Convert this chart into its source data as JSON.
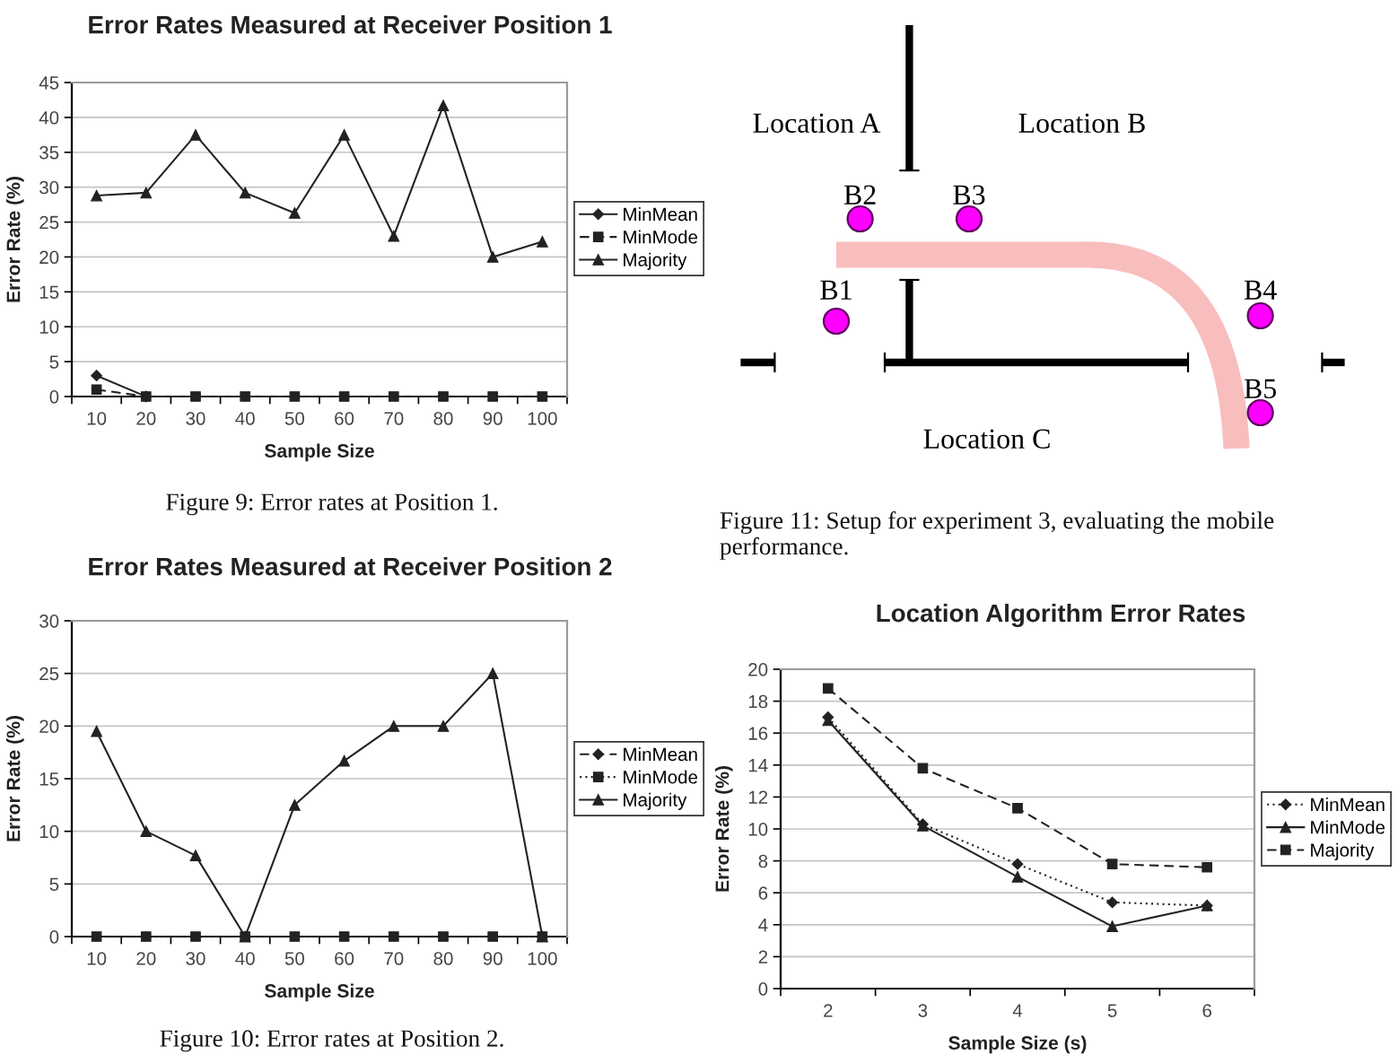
{
  "chart_data": [
    {
      "type": "line",
      "title": "Error Rates Measured at Receiver Position 1",
      "xlabel": "Sample Size",
      "ylabel": "Error Rate (%)",
      "categories": [
        "10",
        "20",
        "30",
        "40",
        "50",
        "60",
        "70",
        "80",
        "90",
        "100"
      ],
      "series": [
        {
          "name": "MinMean",
          "color": "#222222",
          "marker": "diamond",
          "line_style": "solid",
          "values": [
            3.0,
            0,
            null,
            null,
            null,
            null,
            null,
            null,
            null,
            null
          ]
        },
        {
          "name": "MinMode",
          "color": "#222222",
          "marker": "square",
          "line_style": "dashed",
          "values": [
            1.0,
            0,
            0,
            0,
            0,
            0,
            0,
            0,
            0,
            0
          ]
        },
        {
          "name": "Majority",
          "color": "#222222",
          "marker": "triangle",
          "line_style": "solid",
          "values": [
            28.8,
            29.2,
            37.5,
            29.2,
            26.3,
            37.5,
            23.0,
            41.7,
            20.0,
            22.2
          ]
        }
      ],
      "ylim": [
        0,
        45
      ],
      "yticks": [
        0,
        5,
        10,
        15,
        20,
        25,
        30,
        35,
        40,
        45
      ],
      "grid": "y",
      "legend": "right",
      "annotations": [
        "Figure 9: Error rates at Position 1."
      ]
    },
    {
      "type": "line",
      "title": "Error Rates Measured at Receiver Position 2",
      "xlabel": "Sample Size",
      "ylabel": "Error Rate (%)",
      "categories": [
        "10",
        "20",
        "30",
        "40",
        "50",
        "60",
        "70",
        "80",
        "90",
        "100"
      ],
      "series": [
        {
          "name": "MinMean",
          "color": "#222222",
          "marker": "diamond",
          "line_style": "dashed",
          "values": [
            null,
            null,
            null,
            null,
            null,
            null,
            null,
            null,
            null,
            null
          ]
        },
        {
          "name": "MinMode",
          "color": "#222222",
          "marker": "square",
          "line_style": "dotted",
          "values": [
            0,
            0,
            0,
            0,
            0,
            0,
            0,
            0,
            0,
            0
          ]
        },
        {
          "name": "Majority",
          "color": "#222222",
          "marker": "triangle",
          "line_style": "solid",
          "values": [
            19.5,
            10.0,
            7.7,
            0,
            12.5,
            16.7,
            20.0,
            20.0,
            25.0,
            0
          ]
        }
      ],
      "ylim": [
        0,
        30
      ],
      "yticks": [
        0,
        5,
        10,
        15,
        20,
        25,
        30
      ],
      "grid": "y",
      "legend": "right",
      "annotations": [
        "Figure 10: Error rates at Position 2."
      ]
    },
    {
      "type": "other",
      "annotations": [
        "Location A",
        "Location B",
        "B2",
        "B3",
        "B1",
        "B4",
        "B5",
        "Location C",
        "Figure 11: Setup for experiment 3, evaluating the mobile performance."
      ]
    },
    {
      "type": "line",
      "title": "Location Algorithm Error Rates",
      "xlabel": "Sample Size (s)",
      "ylabel": "Error Rate (%)",
      "categories": [
        "2",
        "3",
        "4",
        "5",
        "6"
      ],
      "series": [
        {
          "name": "MinMean",
          "color": "#222222",
          "marker": "diamond",
          "line_style": "dotted",
          "values": [
            17.0,
            10.3,
            7.8,
            5.4,
            5.2
          ]
        },
        {
          "name": "MinMode",
          "color": "#222222",
          "marker": "triangle",
          "line_style": "solid",
          "values": [
            16.8,
            10.2,
            7.0,
            3.9,
            5.2
          ]
        },
        {
          "name": "Majority",
          "color": "#222222",
          "marker": "square",
          "line_style": "dashed",
          "values": [
            18.8,
            13.8,
            11.3,
            7.8,
            7.6
          ]
        }
      ],
      "ylim": [
        0,
        20
      ],
      "yticks": [
        0,
        2,
        4,
        6,
        8,
        10,
        12,
        14,
        16,
        18,
        20
      ],
      "grid": "y",
      "legend": "right"
    }
  ]
}
